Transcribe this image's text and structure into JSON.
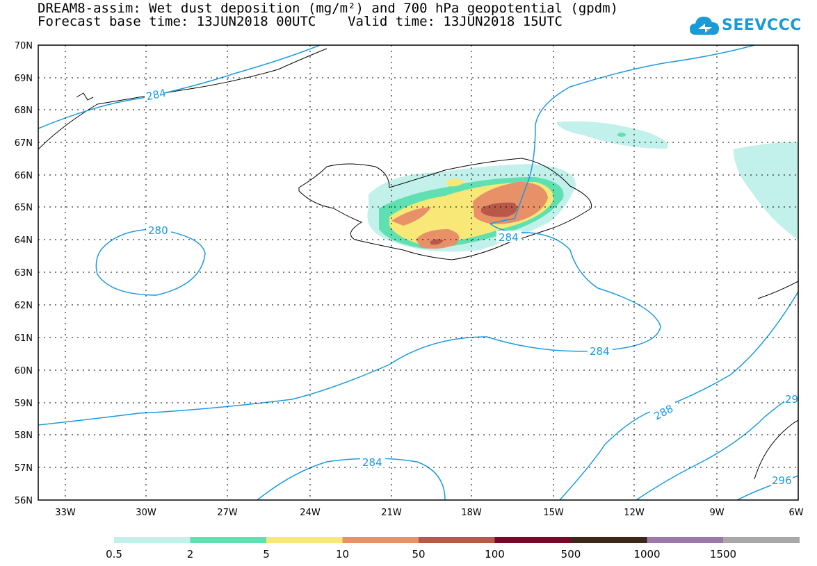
{
  "header": {
    "title_line1": "DREAM8-assim: Wet dust deposition (mg/m²) and 700 hPa geopotential (gpdm)",
    "title_line2": "Forecast base time: 13JUN2018 00UTC    Valid time: 13JUN2018 15UTC"
  },
  "logo": {
    "text": "SEEVCCC",
    "icon": "cloud-icon",
    "color": "#1a9ad6"
  },
  "map": {
    "lat_labels": [
      "70N",
      "69N",
      "68N",
      "67N",
      "66N",
      "65N",
      "64N",
      "63N",
      "62N",
      "61N",
      "60N",
      "59N",
      "58N",
      "57N",
      "56N"
    ],
    "lon_labels": [
      "33W",
      "30W",
      "27W",
      "24W",
      "21W",
      "18W",
      "15W",
      "12W",
      "9W",
      "6W"
    ],
    "contour_color": "#1a9ae0",
    "contour_labels": [
      "284",
      "280",
      "284",
      "284",
      "284",
      "288",
      "29",
      "296"
    ]
  },
  "legend": {
    "colors": [
      "#c2f0ea",
      "#5fe0b0",
      "#f8e878",
      "#e89068",
      "#b85848",
      "#7a0828",
      "#3a2818",
      "#9a78a8",
      "#a8a8a8"
    ],
    "labels": [
      "0.5",
      "2",
      "5",
      "10",
      "50",
      "100",
      "500",
      "1000",
      "1500"
    ]
  }
}
